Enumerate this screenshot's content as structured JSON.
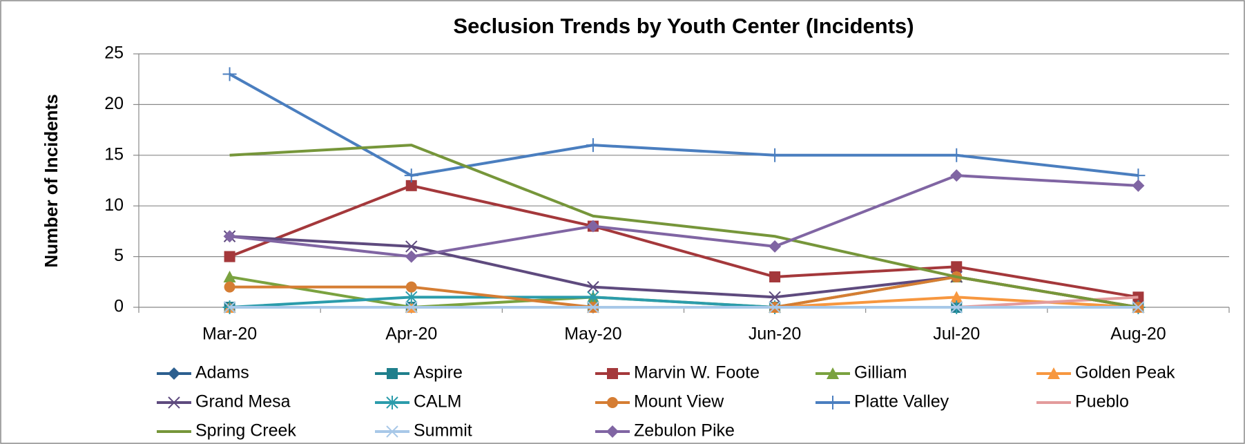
{
  "chart_data": {
    "type": "line",
    "title": "Seclusion Trends by Youth Center (Incidents)",
    "y_label": "Number of Incidents",
    "categories": [
      "Mar-20",
      "Apr-20",
      "May-20",
      "Jun-20",
      "Jul-20",
      "Aug-20"
    ],
    "ylim": [
      0,
      25
    ],
    "yticks": [
      0,
      5,
      10,
      15,
      20,
      25
    ],
    "grid": true,
    "legend": "bottom",
    "series": [
      {
        "name": "Adams",
        "color": "#2c5f8f",
        "marker": "diamond",
        "values": [
          0,
          0,
          0,
          0,
          0,
          0
        ]
      },
      {
        "name": "Aspire",
        "color": "#1f7f8c",
        "marker": "square",
        "values": [
          0,
          0,
          0,
          0,
          0,
          0
        ]
      },
      {
        "name": "Marvin W. Foote",
        "color": "#a4383b",
        "marker": "square",
        "values": [
          5,
          12,
          8,
          3,
          4,
          1
        ]
      },
      {
        "name": "Gilliam",
        "color": "#7aa23f",
        "marker": "triangle",
        "values": [
          3,
          0,
          1,
          0,
          3,
          0
        ]
      },
      {
        "name": "Golden Peak",
        "color": "#f7973f",
        "marker": "triangle",
        "values": [
          0,
          0,
          0,
          0,
          1,
          0
        ]
      },
      {
        "name": "Grand Mesa",
        "color": "#5e4a7e",
        "marker": "x",
        "values": [
          7,
          6,
          2,
          1,
          3,
          0
        ]
      },
      {
        "name": "CALM",
        "color": "#2b9cab",
        "marker": "asterisk",
        "values": [
          0,
          1,
          1,
          0,
          0,
          0
        ]
      },
      {
        "name": "Mount View",
        "color": "#d57d33",
        "marker": "circle",
        "values": [
          2,
          2,
          0,
          0,
          3,
          0
        ]
      },
      {
        "name": "Platte Valley",
        "color": "#4a7ebf",
        "marker": "plus",
        "values": [
          23,
          13,
          16,
          15,
          15,
          13
        ]
      },
      {
        "name": "Pueblo",
        "color": "#e39b9c",
        "marker": "none",
        "values": [
          0,
          0,
          0,
          0,
          0,
          1
        ]
      },
      {
        "name": "Spring Creek",
        "color": "#76963a",
        "marker": "none",
        "values": [
          15,
          16,
          9,
          7,
          3,
          0
        ]
      },
      {
        "name": "Summit",
        "color": "#a8c8e8",
        "marker": "x",
        "values": [
          0,
          0,
          0,
          0,
          0,
          0
        ]
      },
      {
        "name": "Zebulon Pike",
        "color": "#8065a3",
        "marker": "diamond",
        "values": [
          7,
          5,
          8,
          6,
          13,
          12
        ]
      }
    ]
  }
}
